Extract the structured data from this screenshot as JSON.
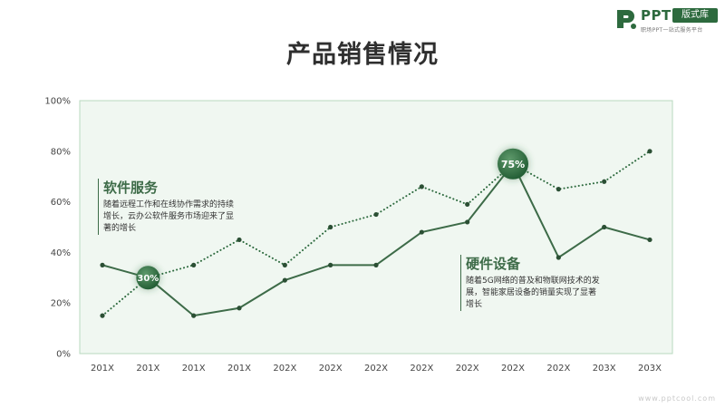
{
  "logo": {
    "brand": "PPT",
    "badge": "版式库",
    "tagline": "职场PPT一站式服务平台"
  },
  "page_title": "产品销售情况",
  "annotations": [
    {
      "title": "软件服务",
      "text": "随着远程工作和在线协作需求的持续增长，云办公软件服务市场迎来了显著的增长"
    },
    {
      "title": "硬件设备",
      "text": "随着5G网络的普及和物联网技术的发展，智能家居设备的销量实现了显著增长"
    }
  ],
  "watermark": "www.pptcool.com",
  "colors": {
    "accent": "#2d6a3e",
    "plot_bg": "#f0f7f1",
    "plot_border": "#b8d8bf",
    "solid_line": "#3d6b48",
    "dotted_line": "#2d6a3e"
  },
  "chart_data": {
    "type": "line",
    "categories": [
      "201X",
      "201X",
      "201X",
      "201X",
      "202X",
      "202X",
      "202X",
      "202X",
      "202X",
      "202X",
      "202X",
      "203X",
      "203X"
    ],
    "series": [
      {
        "style": "solid",
        "values": [
          35,
          30,
          15,
          18,
          29,
          35,
          35,
          48,
          52,
          75,
          38,
          50,
          45
        ],
        "highlight": {
          "index": 1,
          "label": "30%"
        }
      },
      {
        "style": "dotted",
        "values": [
          15,
          30,
          35,
          45,
          35,
          50,
          55,
          66,
          59,
          75,
          65,
          68,
          80
        ],
        "highlight": {
          "index": 9,
          "label": "75%"
        }
      }
    ],
    "ylim": [
      0,
      100
    ],
    "yticks": [
      "0%",
      "20%",
      "40%",
      "60%",
      "80%",
      "100%"
    ],
    "grid": false
  }
}
